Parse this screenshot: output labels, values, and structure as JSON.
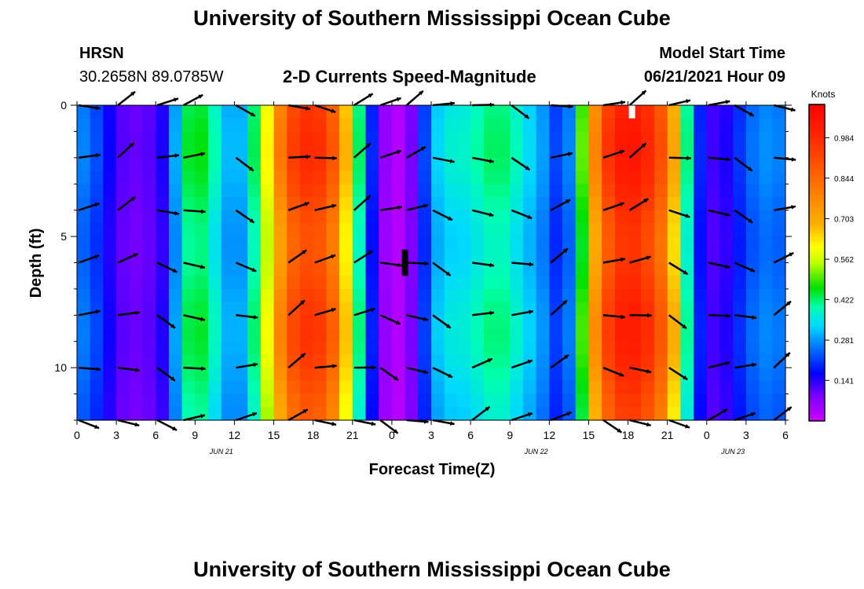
{
  "title_top": "University of Southern Mississippi Ocean Cube",
  "title_bottom": "University of Southern Mississippi Ocean Cube",
  "station": {
    "name": "HRSN",
    "coords": "30.2658N  89.0785W"
  },
  "model_start": {
    "label": "Model Start Time",
    "value": "06/21/2021 Hour 09"
  },
  "colors": {
    "arrow": "#000000",
    "background": "#ffffff"
  },
  "chart_data": {
    "type": "heatmap",
    "title": "2-D Currents Speed-Magnitude",
    "xlabel": "Forecast Time(Z)",
    "ylabel": "Depth (ft)",
    "x_unit": "hours",
    "x_range": [
      0,
      54
    ],
    "y_range": [
      0,
      12
    ],
    "y_ticks": [
      0,
      5,
      10
    ],
    "x_tick_labels": [
      "0",
      "3",
      "6",
      "9",
      "12",
      "15",
      "18",
      "21",
      "0",
      "3",
      "6",
      "9",
      "12",
      "15",
      "18",
      "21",
      "0",
      "3",
      "6"
    ],
    "date_labels": [
      {
        "label": "JUN 21",
        "hour": 11
      },
      {
        "label": "JUN 22",
        "hour": 35
      },
      {
        "label": "JUN 23",
        "hour": 50
      }
    ],
    "colorbar": {
      "unit": "Knots",
      "ticks": [
        0.141,
        0.281,
        0.422,
        0.562,
        0.703,
        0.844,
        0.984
      ],
      "range": [
        0.0,
        1.1
      ]
    },
    "speed_profile": [
      {
        "hour": 0,
        "speed": 0.24
      },
      {
        "hour": 1,
        "speed": 0.22
      },
      {
        "hour": 2,
        "speed": 0.17
      },
      {
        "hour": 3,
        "speed": 0.11
      },
      {
        "hour": 4,
        "speed": 0.08
      },
      {
        "hour": 5,
        "speed": 0.09
      },
      {
        "hour": 6,
        "speed": 0.1
      },
      {
        "hour": 7,
        "speed": 0.16
      },
      {
        "hour": 8,
        "speed": 0.36
      },
      {
        "hour": 9,
        "speed": 0.42
      },
      {
        "hour": 10,
        "speed": 0.38
      },
      {
        "hour": 11,
        "speed": 0.3
      },
      {
        "hour": 12,
        "speed": 0.24
      },
      {
        "hour": 13,
        "speed": 0.3
      },
      {
        "hour": 14,
        "speed": 0.45
      },
      {
        "hour": 15,
        "speed": 0.62
      },
      {
        "hour": 16,
        "speed": 0.8
      },
      {
        "hour": 17,
        "speed": 0.88
      },
      {
        "hour": 18,
        "speed": 0.9
      },
      {
        "hour": 19,
        "speed": 0.85
      },
      {
        "hour": 20,
        "speed": 0.72
      },
      {
        "hour": 21,
        "speed": 0.48
      },
      {
        "hour": 22,
        "speed": 0.26
      },
      {
        "hour": 23,
        "speed": 0.08
      },
      {
        "hour": 24,
        "speed": 0.02
      },
      {
        "hour": 25,
        "speed": 0.03
      },
      {
        "hour": 26,
        "speed": 0.12
      },
      {
        "hour": 27,
        "speed": 0.26
      },
      {
        "hour": 28,
        "speed": 0.32
      },
      {
        "hour": 29,
        "speed": 0.32
      },
      {
        "hour": 30,
        "speed": 0.33
      },
      {
        "hour": 31,
        "speed": 0.36
      },
      {
        "hour": 32,
        "speed": 0.38
      },
      {
        "hour": 33,
        "speed": 0.36
      },
      {
        "hour": 34,
        "speed": 0.31
      },
      {
        "hour": 35,
        "speed": 0.28
      },
      {
        "hour": 36,
        "speed": 0.22
      },
      {
        "hour": 37,
        "speed": 0.16
      },
      {
        "hour": 38,
        "speed": 0.3
      },
      {
        "hour": 39,
        "speed": 0.58
      },
      {
        "hour": 40,
        "speed": 0.8
      },
      {
        "hour": 41,
        "speed": 0.93
      },
      {
        "hour": 42,
        "speed": 0.98
      },
      {
        "hour": 43,
        "speed": 0.95
      },
      {
        "hour": 44,
        "speed": 0.86
      },
      {
        "hour": 45,
        "speed": 0.75
      },
      {
        "hour": 46,
        "speed": 0.5
      },
      {
        "hour": 47,
        "speed": 0.22
      },
      {
        "hour": 48,
        "speed": 0.12
      },
      {
        "hour": 49,
        "speed": 0.1
      },
      {
        "hour": 50,
        "speed": 0.16
      },
      {
        "hour": 51,
        "speed": 0.2
      },
      {
        "hour": 52,
        "speed": 0.24
      },
      {
        "hour": 53,
        "speed": 0.24
      },
      {
        "hour": 54,
        "speed": 0.22
      }
    ],
    "vector_hours": [
      0,
      3,
      6,
      8,
      12,
      16,
      18,
      21,
      23,
      25,
      27,
      30,
      33,
      36,
      40,
      42,
      45,
      48,
      50,
      53
    ],
    "vector_depths": [
      0,
      2,
      4,
      6,
      8,
      10,
      12
    ],
    "markers": [
      {
        "name": "model-start-marker",
        "hour": 25,
        "depth_top": 5.5,
        "depth_bottom": 6.5,
        "color": "#000000"
      },
      {
        "name": "now-marker",
        "hour": 42.3,
        "depth_top": 0,
        "depth_bottom": 0.5,
        "color": "#ffffff"
      }
    ]
  }
}
